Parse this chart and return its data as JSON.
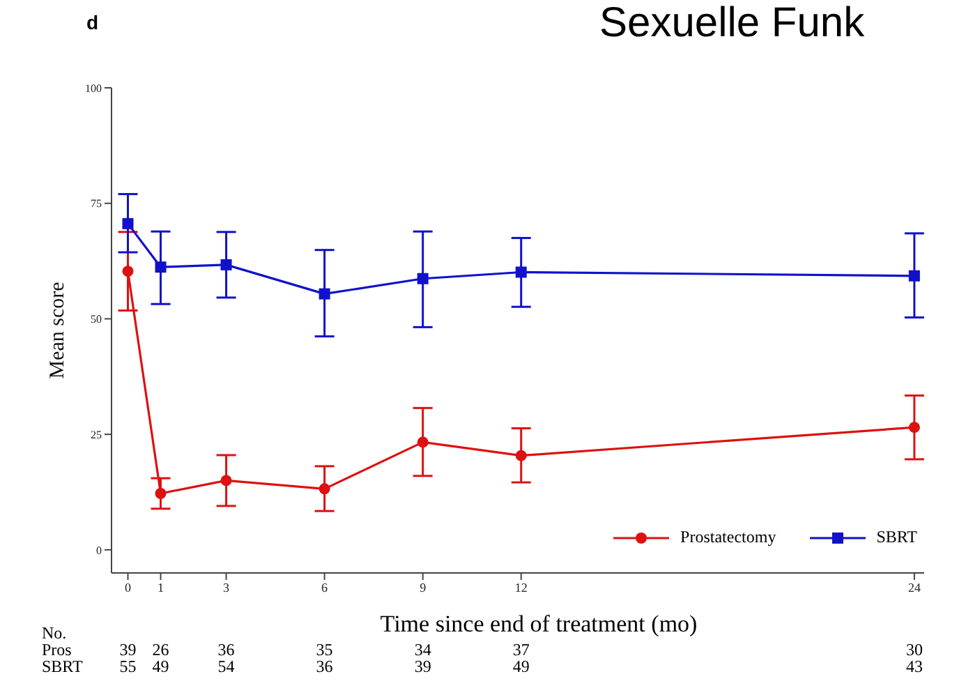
{
  "chart_data": {
    "type": "line",
    "title": "Sexuelle Funk",
    "xlabel": "Time since end of treatment (mo)",
    "ylabel": "Mean score",
    "x": [
      0,
      1,
      3,
      6,
      9,
      12,
      24
    ],
    "xlim": [
      -0.5,
      24.3
    ],
    "xticks": [
      0,
      1,
      3,
      6,
      9,
      12,
      24
    ],
    "ylim": [
      -5,
      100
    ],
    "yticks": [
      0,
      25,
      50,
      75,
      100
    ],
    "grid": false,
    "legend": "bottom right",
    "line_style": "solid",
    "series": [
      {
        "name": "Prostatectomy",
        "color": "#dd1111",
        "marker": "circle",
        "values": [
          60.3,
          12.2,
          15.0,
          13.2,
          23.3,
          20.4,
          26.5
        ],
        "errors": [
          [
            51.8,
            68.8
          ],
          [
            8.9,
            15.5
          ],
          [
            9.5,
            20.5
          ],
          [
            8.4,
            18.1
          ],
          [
            16.0,
            30.7
          ],
          [
            14.6,
            26.3
          ],
          [
            19.6,
            33.4
          ]
        ]
      },
      {
        "name": "SBRT",
        "color": "#1111cc",
        "marker": "square",
        "values": [
          70.6,
          61.2,
          61.7,
          55.4,
          58.7,
          60.1,
          59.3
        ],
        "errors": [
          [
            64.4,
            77.0
          ],
          [
            53.2,
            68.9
          ],
          [
            54.6,
            68.8
          ],
          [
            46.2,
            64.9
          ],
          [
            48.2,
            68.9
          ],
          [
            52.6,
            67.5
          ],
          [
            50.3,
            68.5
          ]
        ]
      }
    ],
    "annotations": [
      "d",
      "No.",
      "Pros",
      "39",
      "26",
      "36",
      "35",
      "34",
      "37",
      "30",
      "SBRT",
      "55",
      "49",
      "54",
      "36",
      "39",
      "49",
      "43"
    ]
  }
}
